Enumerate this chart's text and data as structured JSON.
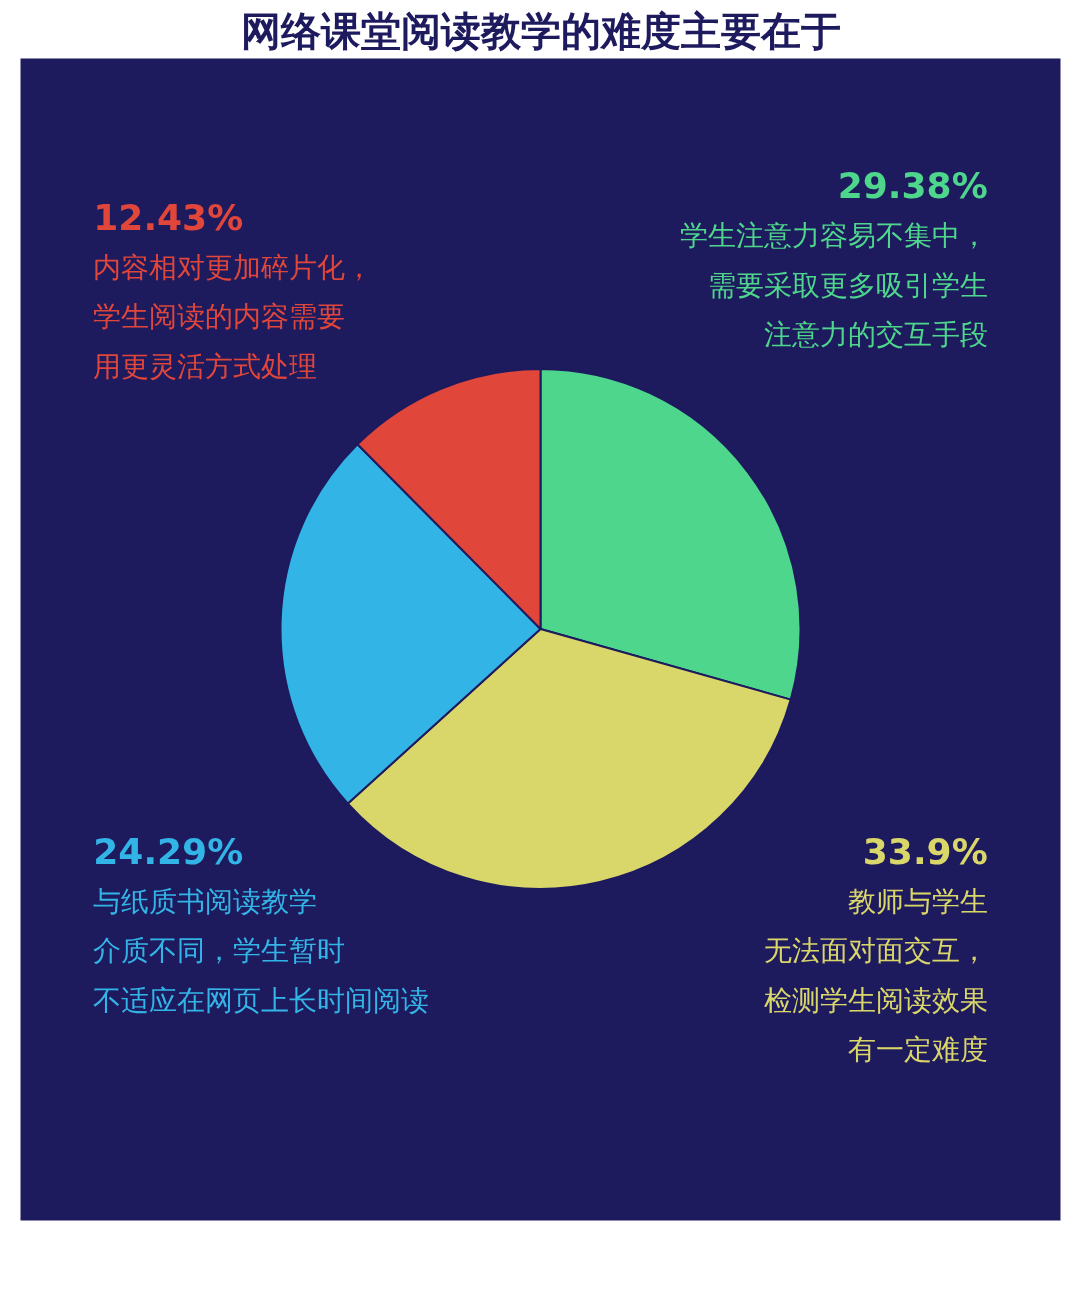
{
  "chart_data": {
    "type": "pie",
    "title": "网络课堂阅读教学的难度主要在于",
    "categories": [
      "学生注意力容易不集中，需要采取更多吸引学生注意力的交互手段",
      "教师与学生无法面对面交互，检测学生阅读效果有一定难度",
      "与纸质书阅读教学介质不同，学生暂时不适应在网页上长时间阅读",
      "内容相对更加碎片化，学生阅读的内容需要用更灵活方式处理"
    ],
    "values": [
      29.38,
      33.9,
      24.29,
      12.43
    ],
    "colors": [
      "#4dd68c",
      "#d9d66a",
      "#33b4e6",
      "#e0463a"
    ],
    "value_labels": [
      "29.38%",
      "33.9%",
      "24.29%",
      "12.43%"
    ]
  }
}
